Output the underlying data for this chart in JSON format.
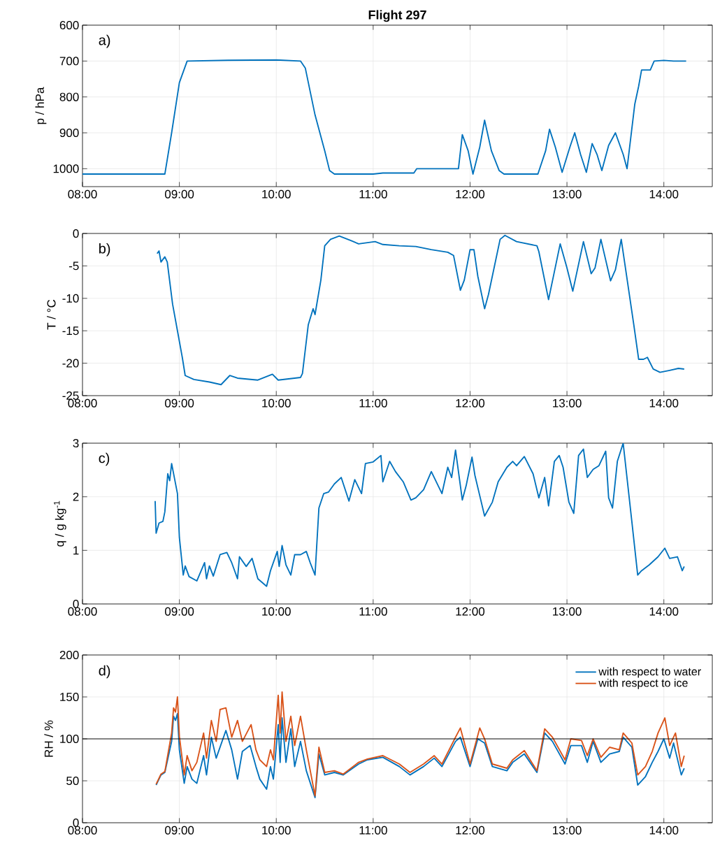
{
  "chart_data": [
    {
      "type": "line",
      "title": "Flight 297",
      "ylabel": "p / hPa",
      "annotations": [
        "a)"
      ],
      "grid": true,
      "xlim": [
        8,
        14.5
      ],
      "xticks": [
        {
          "value": 8,
          "label": "08:00"
        },
        {
          "value": 9,
          "label": "09:00"
        },
        {
          "value": 10,
          "label": "10:00"
        },
        {
          "value": 11,
          "label": "11:00"
        },
        {
          "value": 12,
          "label": "12:00"
        },
        {
          "value": 13,
          "label": "13:00"
        },
        {
          "value": 14,
          "label": "14:00"
        }
      ],
      "ylim": [
        1050,
        600
      ],
      "yticks": [
        600,
        700,
        800,
        900,
        1000
      ],
      "series": [
        {
          "color": "#0072bd",
          "x": [
            8.0,
            8.85,
            8.92,
            9.0,
            9.08,
            9.5,
            10.0,
            10.25,
            10.3,
            10.4,
            10.5,
            10.55,
            10.6,
            11.0,
            11.1,
            11.42,
            11.45,
            11.88,
            11.92,
            11.98,
            12.03,
            12.1,
            12.15,
            12.22,
            12.3,
            12.35,
            12.7,
            12.78,
            12.82,
            12.88,
            12.95,
            13.03,
            13.08,
            13.14,
            13.2,
            13.26,
            13.31,
            13.36,
            13.43,
            13.5,
            13.58,
            13.62,
            13.7,
            13.74,
            13.77,
            13.86,
            13.9,
            14.0,
            14.1,
            14.23
          ],
          "values": [
            1015,
            1015,
            900,
            760,
            700,
            698,
            697,
            700,
            720,
            850,
            950,
            1005,
            1015,
            1015,
            1012,
            1012,
            1000,
            1000,
            905,
            950,
            1015,
            940,
            865,
            950,
            1005,
            1015,
            1015,
            950,
            890,
            940,
            1010,
            940,
            900,
            960,
            1010,
            930,
            960,
            1005,
            935,
            900,
            960,
            1000,
            820,
            770,
            725,
            725,
            700,
            698,
            700,
            700
          ]
        }
      ]
    },
    {
      "type": "line",
      "ylabel": "T / °C",
      "annotations": [
        "b)"
      ],
      "grid": true,
      "xlim": [
        8,
        14.5
      ],
      "xticks": [
        {
          "value": 8,
          "label": "08:00"
        },
        {
          "value": 9,
          "label": "09:00"
        },
        {
          "value": 10,
          "label": "10:00"
        },
        {
          "value": 11,
          "label": "11:00"
        },
        {
          "value": 12,
          "label": "12:00"
        },
        {
          "value": 13,
          "label": "13:00"
        },
        {
          "value": 14,
          "label": "14:00"
        }
      ],
      "ylim": [
        -25,
        0
      ],
      "yticks": [
        -25,
        -20,
        -15,
        -10,
        -5,
        0
      ],
      "series": [
        {
          "color": "#0072bd",
          "x": [
            8.77,
            8.79,
            8.81,
            8.85,
            8.875,
            8.93,
            8.98,
            9.03,
            9.06,
            9.15,
            9.31,
            9.43,
            9.52,
            9.6,
            9.81,
            9.96,
            10.02,
            10.25,
            10.27,
            10.33,
            10.38,
            10.4,
            10.46,
            10.5,
            10.56,
            10.65,
            10.77,
            10.85,
            11.02,
            11.1,
            11.27,
            11.44,
            11.6,
            11.77,
            11.83,
            11.9,
            11.94,
            12.0,
            12.04,
            12.08,
            12.15,
            12.19,
            12.31,
            12.36,
            12.48,
            12.69,
            12.71,
            12.81,
            12.93,
            13.0,
            13.06,
            13.17,
            13.25,
            13.29,
            13.35,
            13.45,
            13.5,
            13.56,
            13.69,
            13.74,
            13.79,
            13.83,
            13.89,
            13.96,
            14.06,
            14.15,
            14.21
          ],
          "values": [
            -3.1,
            -2.7,
            -4.4,
            -3.6,
            -4.4,
            -10.9,
            -15,
            -19.1,
            -21.9,
            -22.5,
            -22.9,
            -23.3,
            -21.9,
            -22.3,
            -22.6,
            -21.7,
            -22.6,
            -22.2,
            -21.6,
            -14.1,
            -11.6,
            -12.5,
            -7.2,
            -1.9,
            -0.9,
            -0.4,
            -1.1,
            -1.6,
            -1.25,
            -1.7,
            -1.9,
            -2.0,
            -2.5,
            -2.9,
            -3.4,
            -8.75,
            -7.2,
            -2.5,
            -2.5,
            -6.6,
            -11.6,
            -9.4,
            -0.9,
            -0.3,
            -1.25,
            -1.9,
            -2.8,
            -10.2,
            -1.6,
            -5.3,
            -8.9,
            -1.25,
            -6.2,
            -5.3,
            -0.9,
            -7.3,
            -5.6,
            -0.9,
            -14.1,
            -19.4,
            -19.4,
            -19.1,
            -20.9,
            -21.4,
            -21.1,
            -20.8,
            -20.9
          ]
        }
      ]
    },
    {
      "type": "line",
      "ylabel": "q / g kg$^{-1}$",
      "annotations": [
        "c)"
      ],
      "grid": true,
      "xlim": [
        8,
        14.5
      ],
      "xticks": [
        {
          "value": 8,
          "label": "08:00"
        },
        {
          "value": 9,
          "label": "09:00"
        },
        {
          "value": 10,
          "label": "10:00"
        },
        {
          "value": 11,
          "label": "11:00"
        },
        {
          "value": 12,
          "label": "12:00"
        },
        {
          "value": 13,
          "label": "13:00"
        },
        {
          "value": 14,
          "label": "14:00"
        }
      ],
      "ylim": [
        0,
        3
      ],
      "yticks": [
        0,
        1,
        2,
        3
      ],
      "series": [
        {
          "color": "#0072bd",
          "x": [
            8.75,
            8.76,
            8.79,
            8.83,
            8.85,
            8.88,
            8.9,
            8.92,
            8.98,
            9.0,
            9.04,
            9.06,
            9.1,
            9.18,
            9.26,
            9.28,
            9.31,
            9.35,
            9.42,
            9.49,
            9.54,
            9.6,
            9.62,
            9.69,
            9.75,
            9.81,
            9.9,
            9.94,
            10.01,
            10.03,
            10.06,
            10.1,
            10.15,
            10.19,
            10.25,
            10.31,
            10.35,
            10.4,
            10.44,
            10.49,
            10.54,
            10.6,
            10.67,
            10.75,
            10.81,
            10.88,
            10.92,
            11.0,
            11.08,
            11.1,
            11.17,
            11.23,
            11.31,
            11.39,
            11.44,
            11.52,
            11.6,
            11.71,
            11.77,
            11.81,
            11.85,
            11.92,
            11.96,
            12.02,
            12.05,
            12.1,
            12.15,
            12.23,
            12.29,
            12.38,
            12.44,
            12.48,
            12.56,
            12.65,
            12.71,
            12.77,
            12.81,
            12.87,
            12.92,
            12.96,
            13.02,
            13.07,
            13.12,
            13.17,
            13.21,
            13.27,
            13.33,
            13.4,
            13.43,
            13.47,
            13.52,
            13.58,
            13.67,
            13.73,
            13.77,
            13.85,
            13.94,
            14.01,
            14.06,
            14.14,
            14.19,
            14.21
          ],
          "values": [
            1.92,
            1.32,
            1.51,
            1.54,
            1.72,
            2.43,
            2.3,
            2.62,
            2.06,
            1.24,
            0.54,
            0.71,
            0.51,
            0.43,
            0.77,
            0.47,
            0.71,
            0.52,
            0.92,
            0.96,
            0.77,
            0.47,
            0.88,
            0.7,
            0.85,
            0.47,
            0.33,
            0.62,
            0.98,
            0.7,
            1.09,
            0.73,
            0.54,
            0.92,
            0.92,
            0.98,
            0.77,
            0.54,
            1.79,
            2.06,
            2.09,
            2.24,
            2.36,
            1.92,
            2.32,
            2.06,
            2.62,
            2.65,
            2.77,
            2.28,
            2.66,
            2.47,
            2.28,
            1.94,
            1.98,
            2.13,
            2.47,
            2.06,
            2.55,
            2.36,
            2.87,
            1.94,
            2.21,
            2.74,
            2.4,
            2.02,
            1.64,
            1.9,
            2.28,
            2.55,
            2.66,
            2.58,
            2.75,
            2.43,
            1.98,
            2.36,
            1.83,
            2.66,
            2.77,
            2.55,
            1.9,
            1.69,
            2.77,
            2.89,
            2.36,
            2.51,
            2.58,
            2.85,
            1.98,
            1.79,
            2.66,
            3.0,
            1.53,
            0.54,
            0.62,
            0.73,
            0.88,
            1.04,
            0.85,
            0.88,
            0.62,
            0.7
          ]
        }
      ]
    },
    {
      "type": "line",
      "ylabel": "RH / %",
      "annotations": [
        "d)"
      ],
      "grid": true,
      "legend": "top right",
      "xlim": [
        8,
        14.5
      ],
      "xticks": [
        {
          "value": 8,
          "label": "08:00"
        },
        {
          "value": 9,
          "label": "09:00"
        },
        {
          "value": 10,
          "label": "10:00"
        },
        {
          "value": 11,
          "label": "11:00"
        },
        {
          "value": 12,
          "label": "12:00"
        },
        {
          "value": 13,
          "label": "13:00"
        },
        {
          "value": 14,
          "label": "14:00"
        }
      ],
      "ylim": [
        0,
        200
      ],
      "yticks": [
        0,
        50,
        100,
        150,
        200
      ],
      "ref_lines": [
        {
          "axis": "y",
          "value": 100,
          "color": "#000000"
        }
      ],
      "series": [
        {
          "name": "with respect to water",
          "color": "#0072bd",
          "x": [
            8.76,
            8.81,
            8.85,
            8.92,
            8.94,
            8.96,
            8.98,
            9.0,
            9.05,
            9.08,
            9.13,
            9.18,
            9.25,
            9.28,
            9.33,
            9.38,
            9.48,
            9.54,
            9.6,
            9.65,
            9.73,
            9.79,
            9.83,
            9.9,
            9.94,
            9.97,
            10.02,
            10.04,
            10.06,
            10.1,
            10.15,
            10.19,
            10.25,
            10.31,
            10.4,
            10.44,
            10.5,
            10.6,
            10.69,
            10.85,
            10.94,
            11.1,
            11.27,
            11.38,
            11.52,
            11.63,
            11.71,
            11.85,
            11.9,
            12.0,
            12.08,
            12.15,
            12.23,
            12.38,
            12.44,
            12.56,
            12.69,
            12.77,
            12.85,
            12.98,
            13.04,
            13.15,
            13.21,
            13.27,
            13.35,
            13.44,
            13.54,
            13.58,
            13.67,
            13.73,
            13.81,
            13.88,
            13.94,
            14.0,
            14.06,
            14.1,
            14.18,
            14.21
          ],
          "values": [
            45,
            57,
            60,
            97,
            127,
            122,
            130,
            87,
            47,
            67,
            52,
            47,
            80,
            57,
            102,
            77,
            110,
            87,
            52,
            85,
            92,
            67,
            52,
            40,
            67,
            52,
            117,
            72,
            125,
            72,
            112,
            67,
            97,
            62,
            30,
            82,
            57,
            60,
            57,
            70,
            75,
            78,
            67,
            57,
            67,
            77,
            67,
            97,
            102,
            67,
            100,
            95,
            67,
            62,
            72,
            82,
            60,
            107,
            97,
            70,
            92,
            92,
            72,
            97,
            72,
            82,
            85,
            102,
            90,
            45,
            55,
            72,
            85,
            100,
            77,
            95,
            57,
            65
          ]
        },
        {
          "name": "with respect to ice",
          "color": "#d95319",
          "x": [
            8.76,
            8.81,
            8.85,
            8.92,
            8.94,
            8.96,
            8.98,
            9.0,
            9.05,
            9.08,
            9.13,
            9.18,
            9.25,
            9.28,
            9.33,
            9.38,
            9.42,
            9.48,
            9.54,
            9.6,
            9.65,
            9.74,
            9.79,
            9.83,
            9.9,
            9.94,
            9.97,
            10.02,
            10.04,
            10.06,
            10.1,
            10.15,
            10.19,
            10.25,
            10.31,
            10.4,
            10.44,
            10.5,
            10.6,
            10.69,
            10.85,
            10.94,
            11.1,
            11.27,
            11.38,
            11.52,
            11.63,
            11.71,
            11.85,
            11.9,
            12.0,
            12.1,
            12.15,
            12.23,
            12.38,
            12.44,
            12.56,
            12.69,
            12.77,
            12.85,
            12.98,
            13.04,
            13.15,
            13.21,
            13.27,
            13.35,
            13.44,
            13.54,
            13.58,
            13.67,
            13.73,
            13.81,
            13.88,
            13.94,
            14.01,
            14.06,
            14.12,
            14.18,
            14.21
          ],
          "values": [
            46,
            58,
            61,
            107,
            137,
            132,
            150,
            103,
            57,
            80,
            62,
            72,
            107,
            77,
            122,
            97,
            135,
            137,
            102,
            122,
            97,
            117,
            87,
            75,
            67,
            87,
            75,
            152,
            107,
            156,
            97,
            127,
            92,
            127,
            87,
            32,
            90,
            60,
            62,
            58,
            72,
            76,
            80,
            70,
            60,
            70,
            80,
            70,
            102,
            113,
            70,
            113,
            100,
            70,
            65,
            75,
            86,
            62,
            112,
            102,
            75,
            100,
            98,
            80,
            100,
            78,
            90,
            87,
            107,
            95,
            57,
            67,
            85,
            107,
            125,
            92,
            107,
            67,
            80
          ]
        }
      ]
    }
  ]
}
